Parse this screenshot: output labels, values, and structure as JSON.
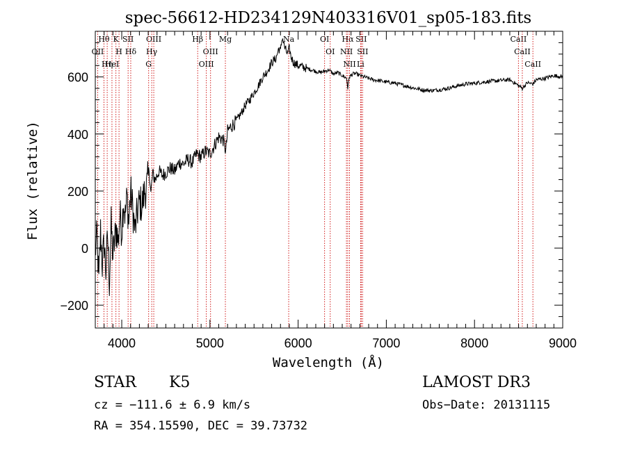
{
  "chart_data": {
    "type": "line",
    "title": "spec-56612-HD234129N403316V01_sp05-183.fits",
    "xlabel": "Wavelength (Å)",
    "ylabel": "Flux (relative)",
    "xlim": [
      3700,
      9000
    ],
    "ylim": [
      -280,
      760
    ],
    "x_ticks": [
      4000,
      5000,
      6000,
      7000,
      8000,
      9000
    ],
    "x_tick_labels": [
      "4000",
      "5000",
      "6000",
      "7000",
      "8000",
      "9000"
    ],
    "y_ticks": [
      -200,
      0,
      200,
      400,
      600
    ],
    "y_tick_labels": [
      "−200",
      "0",
      "200",
      "400",
      "600"
    ],
    "grid": false,
    "line_color": "#000000",
    "marker_color": "#cc0000",
    "series": [
      {
        "name": "flux",
        "points": [
          [
            3700,
            -10
          ],
          [
            3720,
            40
          ],
          [
            3740,
            -120
          ],
          [
            3760,
            60
          ],
          [
            3780,
            -60
          ],
          [
            3800,
            20
          ],
          [
            3820,
            -80
          ],
          [
            3840,
            40
          ],
          [
            3860,
            -120
          ],
          [
            3880,
            80
          ],
          [
            3900,
            -30
          ],
          [
            3920,
            30
          ],
          [
            3940,
            70
          ],
          [
            3960,
            20
          ],
          [
            3980,
            120
          ],
          [
            4000,
            60
          ],
          [
            4020,
            170
          ],
          [
            4040,
            110
          ],
          [
            4060,
            180
          ],
          [
            4080,
            90
          ],
          [
            4100,
            200
          ],
          [
            4120,
            150
          ],
          [
            4150,
            60
          ],
          [
            4180,
            130
          ],
          [
            4200,
            160
          ],
          [
            4230,
            150
          ],
          [
            4260,
            200
          ],
          [
            4290,
            220
          ],
          [
            4310,
            280
          ],
          [
            4330,
            190
          ],
          [
            4350,
            260
          ],
          [
            4380,
            240
          ],
          [
            4420,
            270
          ],
          [
            4460,
            255
          ],
          [
            4500,
            265
          ],
          [
            4550,
            280
          ],
          [
            4600,
            270
          ],
          [
            4650,
            300
          ],
          [
            4700,
            295
          ],
          [
            4750,
            310
          ],
          [
            4800,
            300
          ],
          [
            4850,
            330
          ],
          [
            4900,
            320
          ],
          [
            4950,
            340
          ],
          [
            5000,
            330
          ],
          [
            5050,
            360
          ],
          [
            5100,
            390
          ],
          [
            5150,
            380
          ],
          [
            5180,
            340
          ],
          [
            5200,
            410
          ],
          [
            5250,
            430
          ],
          [
            5300,
            445
          ],
          [
            5350,
            470
          ],
          [
            5400,
            500
          ],
          [
            5450,
            520
          ],
          [
            5500,
            545
          ],
          [
            5550,
            570
          ],
          [
            5600,
            600
          ],
          [
            5650,
            620
          ],
          [
            5700,
            650
          ],
          [
            5750,
            665
          ],
          [
            5780,
            700
          ],
          [
            5800,
            690
          ],
          [
            5820,
            740
          ],
          [
            5850,
            700
          ],
          [
            5880,
            680
          ],
          [
            5900,
            700
          ],
          [
            5920,
            670
          ],
          [
            5950,
            650
          ],
          [
            6000,
            640
          ],
          [
            6050,
            635
          ],
          [
            6100,
            630
          ],
          [
            6150,
            625
          ],
          [
            6200,
            620
          ],
          [
            6250,
            615
          ],
          [
            6300,
            620
          ],
          [
            6350,
            625
          ],
          [
            6400,
            610
          ],
          [
            6450,
            615
          ],
          [
            6500,
            605
          ],
          [
            6550,
            595
          ],
          [
            6563,
            560
          ],
          [
            6580,
            600
          ],
          [
            6620,
            610
          ],
          [
            6650,
            612
          ],
          [
            6700,
            605
          ],
          [
            6750,
            600
          ],
          [
            6800,
            595
          ],
          [
            6850,
            590
          ],
          [
            6900,
            588
          ],
          [
            6950,
            585
          ],
          [
            7000,
            582
          ],
          [
            7100,
            578
          ],
          [
            7200,
            570
          ],
          [
            7300,
            562
          ],
          [
            7400,
            555
          ],
          [
            7500,
            552
          ],
          [
            7600,
            555
          ],
          [
            7700,
            560
          ],
          [
            7800,
            568
          ],
          [
            7900,
            575
          ],
          [
            8000,
            578
          ],
          [
            8100,
            582
          ],
          [
            8200,
            585
          ],
          [
            8300,
            588
          ],
          [
            8400,
            590
          ],
          [
            8498,
            570
          ],
          [
            8542,
            560
          ],
          [
            8600,
            580
          ],
          [
            8662,
            575
          ],
          [
            8700,
            590
          ],
          [
            8800,
            595
          ],
          [
            8900,
            605
          ],
          [
            9000,
            600
          ]
        ]
      }
    ],
    "line_markers": [
      {
        "name": "Hθ",
        "wavelength": 3798
      },
      {
        "name": "OII",
        "wavelength": 3727
      },
      {
        "name": "HeI",
        "wavelength": 3889
      },
      {
        "name": "Hη",
        "wavelength": 3835
      },
      {
        "name": "K",
        "wavelength": 3934
      },
      {
        "name": "H",
        "wavelength": 3969
      },
      {
        "name": "SII",
        "wavelength": 4072
      },
      {
        "name": "Hδ",
        "wavelength": 4102
      },
      {
        "name": "OIII",
        "wavelength": 4363
      },
      {
        "name": "Hγ",
        "wavelength": 4340
      },
      {
        "name": "G",
        "wavelength": 4305
      },
      {
        "name": "Hβ",
        "wavelength": 4861
      },
      {
        "name": "OIII",
        "wavelength": 5007
      },
      {
        "name": "OIII",
        "wavelength": 4959
      },
      {
        "name": "Mg",
        "wavelength": 5175
      },
      {
        "name": "Na",
        "wavelength": 5893
      },
      {
        "name": "OI",
        "wavelength": 6300
      },
      {
        "name": "OI",
        "wavelength": 6364
      },
      {
        "name": "Hα",
        "wavelength": 6563
      },
      {
        "name": "NII",
        "wavelength": 6548
      },
      {
        "name": "NII",
        "wavelength": 6583
      },
      {
        "name": "SII",
        "wavelength": 6716
      },
      {
        "name": "SII",
        "wavelength": 6731
      },
      {
        "name": "Li",
        "wavelength": 6708
      },
      {
        "name": "CaII",
        "wavelength": 8498
      },
      {
        "name": "CaII",
        "wavelength": 8542
      },
      {
        "name": "CaII",
        "wavelength": 8662
      }
    ]
  },
  "info": {
    "object_class": "STAR",
    "subclass": "K5",
    "survey": "LAMOST DR3",
    "cz": "cz = −111.6 ± 6.9 km/s",
    "obs_date": "Obs−Date: 20131115",
    "coords": "RA = 354.15590, DEC =  39.73732"
  }
}
